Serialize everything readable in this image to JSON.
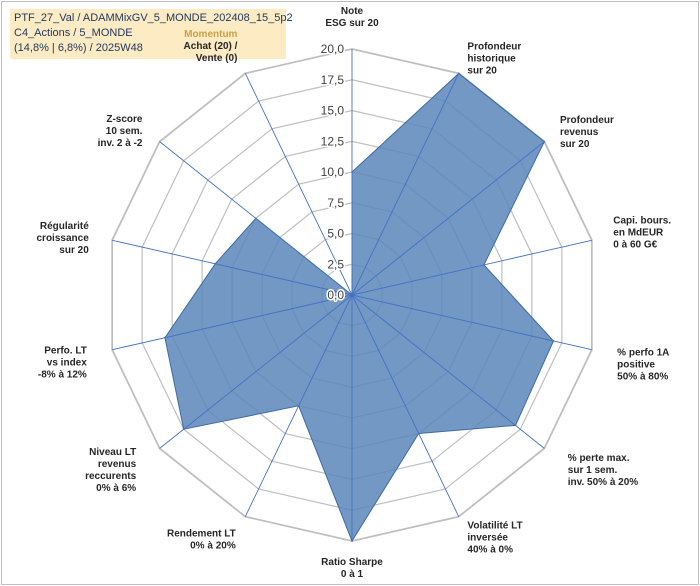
{
  "header": {
    "line1": "PTF_27_Val / ADAMMixGV_5_MONDE_202408_15_5p2",
    "line2": "C4_Actions / 5_MONDE",
    "line3": "(14,8% | 6,8%) / 2025W48"
  },
  "colors": {
    "fill": "#5b86ba",
    "stroke": "#3d6aa6",
    "grid": "#bfbfbf",
    "spoke": "#4472c4",
    "momentum": "#c8a24a"
  },
  "chart_data": {
    "type": "radar",
    "range": [
      0,
      20
    ],
    "ticks": [
      "0,0",
      "2,5",
      "5,0",
      "7,5",
      "10,0",
      "12,5",
      "15,0",
      "17,5",
      "20,0"
    ],
    "axes": [
      {
        "label": [
          "Note",
          "ESG sur 20"
        ],
        "value": 10
      },
      {
        "label": [
          "Profondeur",
          "historique",
          "sur 20"
        ],
        "value": 20
      },
      {
        "label": [
          "Profondeur",
          "revenus",
          "sur 20"
        ],
        "value": 20
      },
      {
        "label": [
          "Capi. bours.",
          "en MdEUR",
          "0 à 60 G€"
        ],
        "value": 11
      },
      {
        "label": [
          "% perfo 1A",
          "positive",
          "50% à 80%"
        ],
        "value": 16.8
      },
      {
        "label": [
          "% perte max.",
          "sur 1 sem.",
          "inv. 50% à 20%"
        ],
        "value": 17
      },
      {
        "label": [
          "Volatilité LT",
          "inversée",
          "40% à 0%"
        ],
        "value": 12.5
      },
      {
        "label": [
          "Ratio Sharpe",
          "0 à 1"
        ],
        "value": 20
      },
      {
        "label": [
          "Rendement LT",
          "0% à 20%"
        ],
        "value": 10
      },
      {
        "label": [
          "Niveau LT",
          "revenus",
          "reccurents",
          "0% à 6%"
        ],
        "value": 17.5
      },
      {
        "label": [
          "Perfo. LT",
          "vs index",
          "-8% à 12%"
        ],
        "value": 15.6
      },
      {
        "label": [
          "Régularité",
          "croissance",
          "sur 20"
        ],
        "value": 11.4
      },
      {
        "label": [
          "Z-score",
          "10 sem.",
          "inv. 2 à -2"
        ],
        "value": 10
      },
      {
        "label": [
          "Momentum",
          "Achat (20) /",
          "Vente (0)"
        ],
        "value": 0
      }
    ]
  }
}
